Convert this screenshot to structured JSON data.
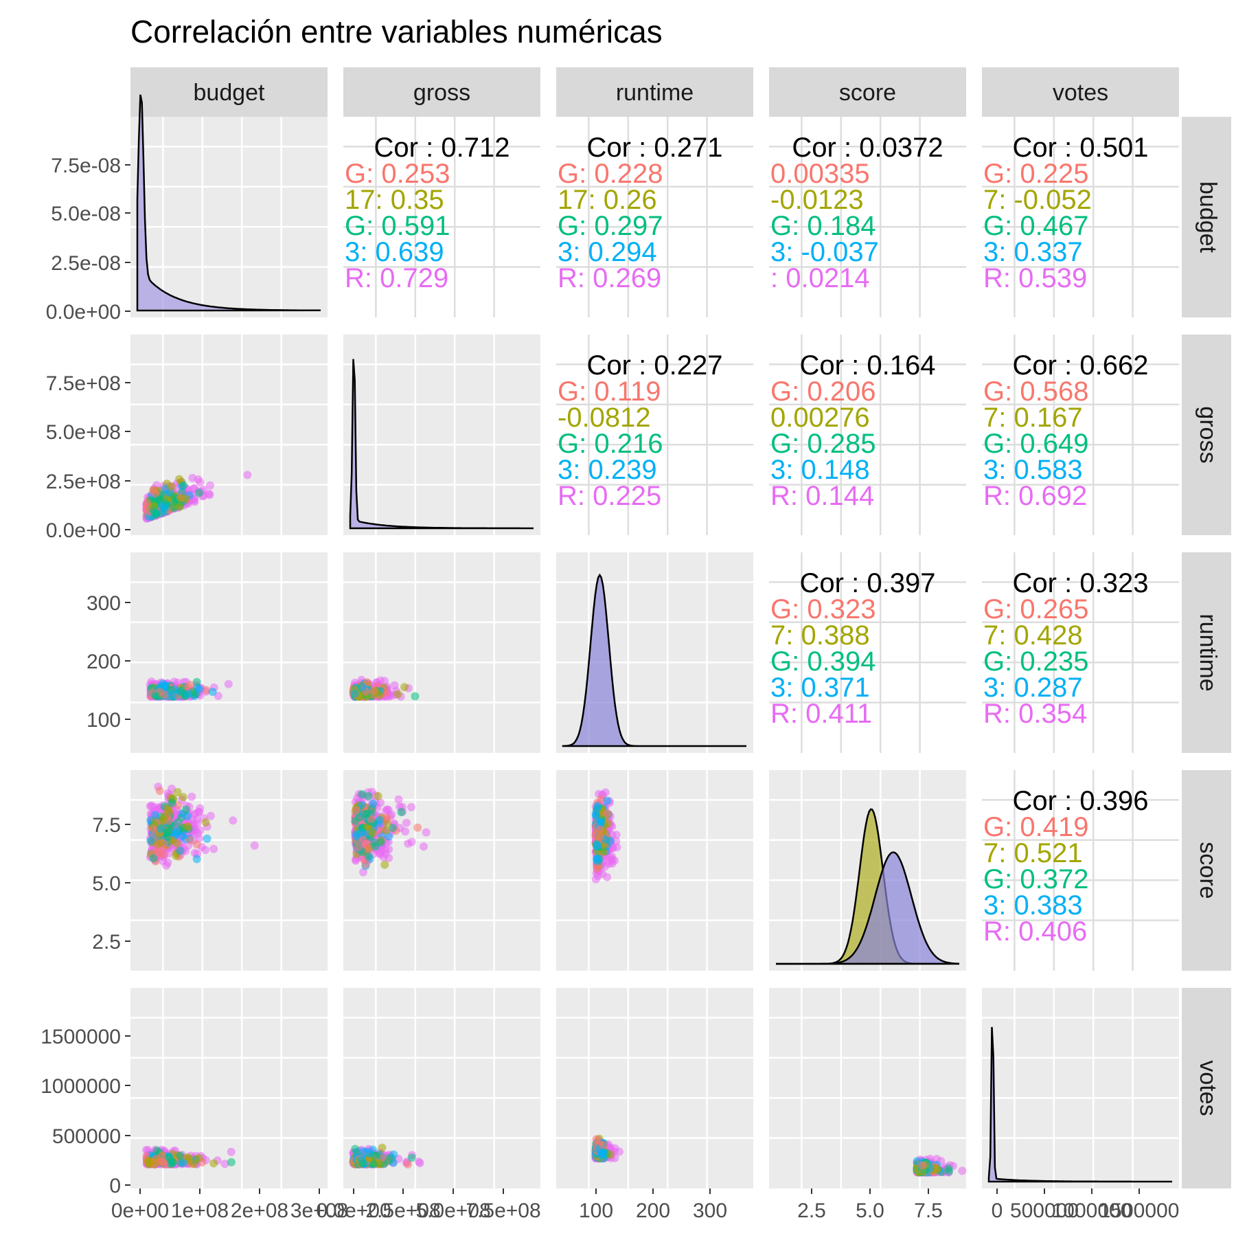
{
  "chart_data": {
    "type": "scatter-matrix",
    "title": "Correlación entre variables numéricas",
    "variables": [
      "budget",
      "gross",
      "runtime",
      "score",
      "votes"
    ],
    "group_colors": [
      "#F8766D",
      "#A3A500",
      "#00BF7D",
      "#00B0F6",
      "#E76BF3"
    ],
    "axis_ticks": {
      "budget_y": [
        "7.5e-08",
        "5.0e-08",
        "2.5e-08",
        "0.0e+00"
      ],
      "gross_y": [
        "7.5e+08",
        "5.0e+08",
        "2.5e+08",
        "0.0e+00"
      ],
      "runtime_y": [
        "300",
        "200",
        "100"
      ],
      "score_y": [
        "7.5",
        "5.0",
        "2.5"
      ],
      "votes_y": [
        "1500000",
        "1000000",
        "500000",
        "0"
      ],
      "budget_x": [
        "0e+00",
        "1e+08",
        "2e+08",
        "3e+08"
      ],
      "gross_x": [
        "0.0e+00",
        "2.5e+08",
        "5.0e+08",
        "7.5e+08"
      ],
      "runtime_x": [
        "100",
        "200",
        "300"
      ],
      "score_x": [
        "2.5",
        "5.0",
        "7.5"
      ],
      "votes_x": [
        "0",
        "500000",
        "1000000",
        "1500000"
      ]
    },
    "correlations": [
      {
        "row": "budget",
        "col": "gross",
        "cor": "Cor : 0.712",
        "groups": [
          "G: 0.253",
          "17: 0.35",
          "G: 0.591",
          "3: 0.639",
          "R: 0.729"
        ]
      },
      {
        "row": "budget",
        "col": "runtime",
        "cor": "Cor : 0.271",
        "groups": [
          "G: 0.228",
          "17: 0.26",
          "G: 0.297",
          "3: 0.294",
          "R: 0.269"
        ]
      },
      {
        "row": "budget",
        "col": "score",
        "cor": "Cor : 0.0372",
        "groups": [
          "0.00335",
          "-0.0123",
          "G: 0.184",
          "3: -0.037",
          ": 0.0214"
        ]
      },
      {
        "row": "budget",
        "col": "votes",
        "cor": "Cor : 0.501",
        "groups": [
          "G: 0.225",
          "7: -0.052",
          "G: 0.467",
          "3: 0.337",
          "R: 0.539"
        ]
      },
      {
        "row": "gross",
        "col": "runtime",
        "cor": "Cor : 0.227",
        "groups": [
          "G: 0.119",
          "-0.0812",
          "G: 0.216",
          "3: 0.239",
          "R: 0.225"
        ]
      },
      {
        "row": "gross",
        "col": "score",
        "cor": "Cor : 0.164",
        "groups": [
          "G: 0.206",
          "0.00276",
          "G: 0.285",
          "3: 0.148",
          "R: 0.144"
        ]
      },
      {
        "row": "gross",
        "col": "votes",
        "cor": "Cor : 0.662",
        "groups": [
          "G: 0.568",
          "7: 0.167",
          "G: 0.649",
          "3: 0.583",
          "R: 0.692"
        ]
      },
      {
        "row": "runtime",
        "col": "score",
        "cor": "Cor : 0.397",
        "groups": [
          "G: 0.323",
          "7: 0.388",
          "G: 0.394",
          "3: 0.371",
          "R: 0.411"
        ]
      },
      {
        "row": "runtime",
        "col": "votes",
        "cor": "Cor : 0.323",
        "groups": [
          "G: 0.265",
          "7: 0.428",
          "G: 0.235",
          "3: 0.287",
          "R: 0.354"
        ]
      },
      {
        "row": "score",
        "col": "votes",
        "cor": "Cor : 0.396",
        "groups": [
          "G: 0.419",
          "7: 0.521",
          "G: 0.372",
          "3: 0.383",
          "R: 0.406"
        ]
      }
    ]
  }
}
